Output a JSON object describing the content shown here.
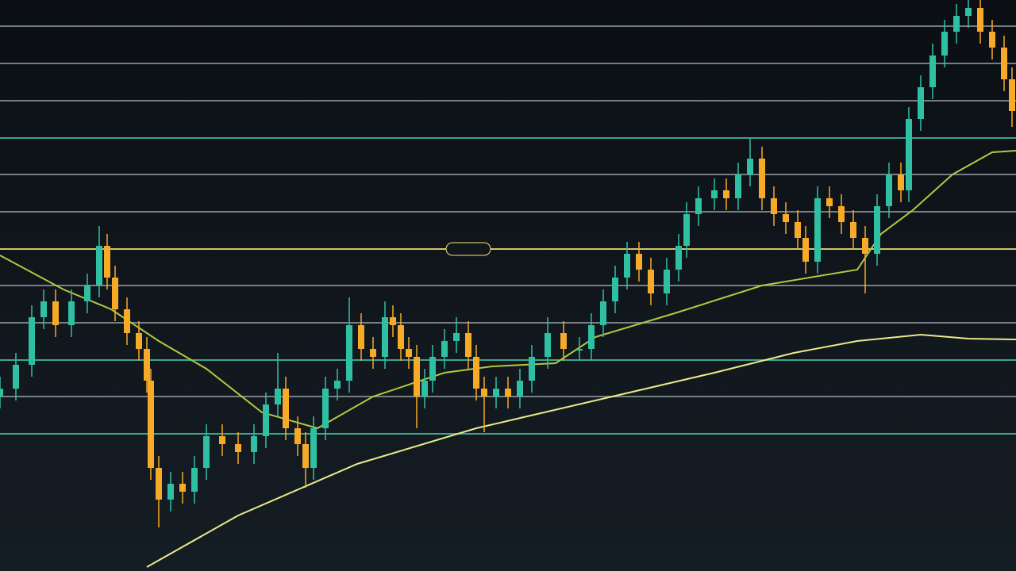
{
  "chart_data": {
    "type": "candlestick",
    "xlim": [
      0,
      1280
    ],
    "ylim": [
      0,
      720
    ],
    "yticks": [
      687,
      640,
      593,
      546,
      500,
      453,
      406,
      360,
      313,
      266,
      220,
      173
    ],
    "ytick_colors": [
      "#8a9296",
      "#8a9296",
      "#8a9296",
      "#3fbfa6",
      "#8a9296",
      "#8a9296",
      "#f3e27a",
      "#8a9296",
      "#8a9296",
      "#3fbfa6",
      "#8a9296",
      "#3fbfa6"
    ],
    "grid": true,
    "up_color": "#2fc0a3",
    "down_color": "#f7a928",
    "x": [
      0,
      20,
      40,
      55,
      70,
      90,
      110,
      125,
      135,
      145,
      160,
      175,
      185,
      190,
      200,
      215,
      230,
      245,
      260,
      280,
      300,
      320,
      335,
      350,
      360,
      375,
      385,
      395,
      410,
      425,
      440,
      455,
      470,
      485,
      495,
      505,
      515,
      525,
      535,
      545,
      560,
      575,
      590,
      600,
      610,
      625,
      640,
      655,
      670,
      690,
      710,
      730,
      745,
      760,
      775,
      790,
      805,
      820,
      840,
      855,
      865,
      880,
      900,
      915,
      930,
      945,
      960,
      975,
      990,
      1005,
      1015,
      1030,
      1045,
      1060,
      1075,
      1090,
      1105,
      1120,
      1135,
      1145,
      1160,
      1175,
      1190,
      1205,
      1220,
      1235,
      1250,
      1265,
      1275
    ],
    "open": [
      220,
      230,
      260,
      320,
      340,
      310,
      340,
      360,
      410,
      370,
      330,
      300,
      280,
      240,
      130,
      90,
      110,
      100,
      130,
      170,
      160,
      150,
      170,
      210,
      230,
      180,
      160,
      130,
      180,
      230,
      240,
      310,
      280,
      270,
      320,
      310,
      280,
      270,
      220,
      240,
      270,
      290,
      300,
      270,
      230,
      220,
      230,
      220,
      240,
      270,
      300,
      280,
      280,
      310,
      340,
      370,
      400,
      380,
      350,
      380,
      410,
      450,
      470,
      480,
      470,
      500,
      520,
      470,
      450,
      440,
      420,
      390,
      470,
      460,
      440,
      420,
      400,
      460,
      500,
      480,
      570,
      610,
      650,
      680,
      700,
      710,
      680,
      660,
      620
    ],
    "high": [
      245,
      275,
      335,
      355,
      355,
      355,
      375,
      435,
      425,
      385,
      345,
      315,
      295,
      255,
      145,
      125,
      125,
      145,
      185,
      185,
      175,
      185,
      225,
      275,
      245,
      195,
      175,
      195,
      245,
      255,
      345,
      325,
      295,
      340,
      335,
      325,
      295,
      285,
      255,
      285,
      305,
      320,
      315,
      285,
      245,
      245,
      245,
      255,
      285,
      320,
      315,
      295,
      325,
      355,
      385,
      415,
      415,
      395,
      395,
      425,
      465,
      485,
      495,
      495,
      515,
      545,
      535,
      485,
      465,
      455,
      435,
      485,
      485,
      475,
      455,
      435,
      475,
      515,
      515,
      585,
      625,
      665,
      695,
      715,
      720,
      720,
      695,
      675,
      635
    ],
    "low": [
      205,
      215,
      245,
      305,
      295,
      295,
      325,
      345,
      355,
      315,
      285,
      265,
      225,
      115,
      55,
      75,
      85,
      85,
      115,
      145,
      135,
      135,
      155,
      195,
      165,
      145,
      105,
      115,
      165,
      215,
      225,
      265,
      255,
      255,
      295,
      265,
      255,
      180,
      205,
      225,
      255,
      275,
      255,
      215,
      175,
      205,
      205,
      205,
      225,
      255,
      265,
      265,
      265,
      295,
      325,
      355,
      365,
      335,
      335,
      365,
      395,
      435,
      455,
      455,
      455,
      485,
      455,
      435,
      425,
      405,
      375,
      375,
      445,
      425,
      405,
      350,
      385,
      445,
      465,
      465,
      555,
      595,
      635,
      665,
      685,
      665,
      645,
      605,
      560
    ],
    "close": [
      230,
      260,
      320,
      340,
      310,
      340,
      360,
      410,
      370,
      330,
      300,
      280,
      240,
      130,
      90,
      110,
      100,
      130,
      170,
      160,
      150,
      170,
      210,
      230,
      180,
      160,
      130,
      180,
      230,
      240,
      310,
      280,
      270,
      320,
      310,
      280,
      270,
      220,
      240,
      270,
      290,
      300,
      270,
      230,
      220,
      230,
      220,
      240,
      270,
      300,
      280,
      280,
      310,
      340,
      370,
      400,
      380,
      350,
      380,
      410,
      450,
      470,
      480,
      470,
      500,
      520,
      470,
      450,
      440,
      420,
      390,
      470,
      460,
      440,
      420,
      400,
      460,
      500,
      480,
      570,
      610,
      650,
      680,
      700,
      710,
      680,
      660,
      620,
      580
    ],
    "lines": [
      {
        "color": "#b3c83e",
        "x": [
          0,
          80,
          140,
          200,
          260,
          330,
          400,
          470,
          560,
          620,
          700,
          750,
          850,
          960,
          1080,
          1110,
          1150,
          1200,
          1250,
          1280
        ],
        "values": [
          398,
          355,
          330,
          290,
          255,
          200,
          180,
          220,
          250,
          258,
          262,
          295,
          325,
          360,
          380,
          425,
          455,
          500,
          528,
          530
        ]
      },
      {
        "color": "#ebe98a",
        "x": [
          185,
          300,
          450,
          600,
          750,
          900,
          1000,
          1080,
          1160,
          1220,
          1280
        ],
        "values": [
          5,
          70,
          135,
          180,
          215,
          250,
          275,
          290,
          298,
          293,
          292
        ]
      }
    ]
  }
}
